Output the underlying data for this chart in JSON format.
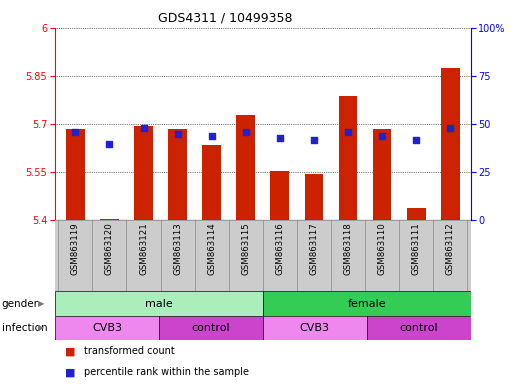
{
  "title": "GDS4311 / 10499358",
  "samples": [
    "GSM863119",
    "GSM863120",
    "GSM863121",
    "GSM863113",
    "GSM863114",
    "GSM863115",
    "GSM863116",
    "GSM863117",
    "GSM863118",
    "GSM863110",
    "GSM863111",
    "GSM863112"
  ],
  "bar_values": [
    5.685,
    5.405,
    5.695,
    5.685,
    5.635,
    5.73,
    5.555,
    5.545,
    5.79,
    5.685,
    5.44,
    5.875
  ],
  "dot_values": [
    46,
    40,
    48,
    45,
    44,
    46,
    43,
    42,
    46,
    44,
    42,
    48
  ],
  "ymin": 5.4,
  "ymax": 6.0,
  "yright_min": 0,
  "yright_max": 100,
  "yticks_left": [
    5.4,
    5.55,
    5.7,
    5.85,
    6.0
  ],
  "yticks_right": [
    0,
    25,
    50,
    75,
    100
  ],
  "bar_color": "#cc2200",
  "dot_color": "#2222cc",
  "gender_groups": [
    {
      "label": "male",
      "start": 0,
      "end": 6,
      "color": "#aaeebb"
    },
    {
      "label": "female",
      "start": 6,
      "end": 12,
      "color": "#33cc55"
    }
  ],
  "infection_groups": [
    {
      "label": "CVB3",
      "start": 0,
      "end": 3,
      "color": "#ee88ee"
    },
    {
      "label": "control",
      "start": 3,
      "end": 6,
      "color": "#cc44cc"
    },
    {
      "label": "CVB3",
      "start": 6,
      "end": 9,
      "color": "#ee88ee"
    },
    {
      "label": "control",
      "start": 9,
      "end": 12,
      "color": "#cc44cc"
    }
  ],
  "legend_items": [
    {
      "label": "transformed count",
      "color": "#cc2200"
    },
    {
      "label": "percentile rank within the sample",
      "color": "#2222cc"
    }
  ],
  "bar_base": 5.4,
  "label_area_color": "#cccccc",
  "border_color": "#888888"
}
